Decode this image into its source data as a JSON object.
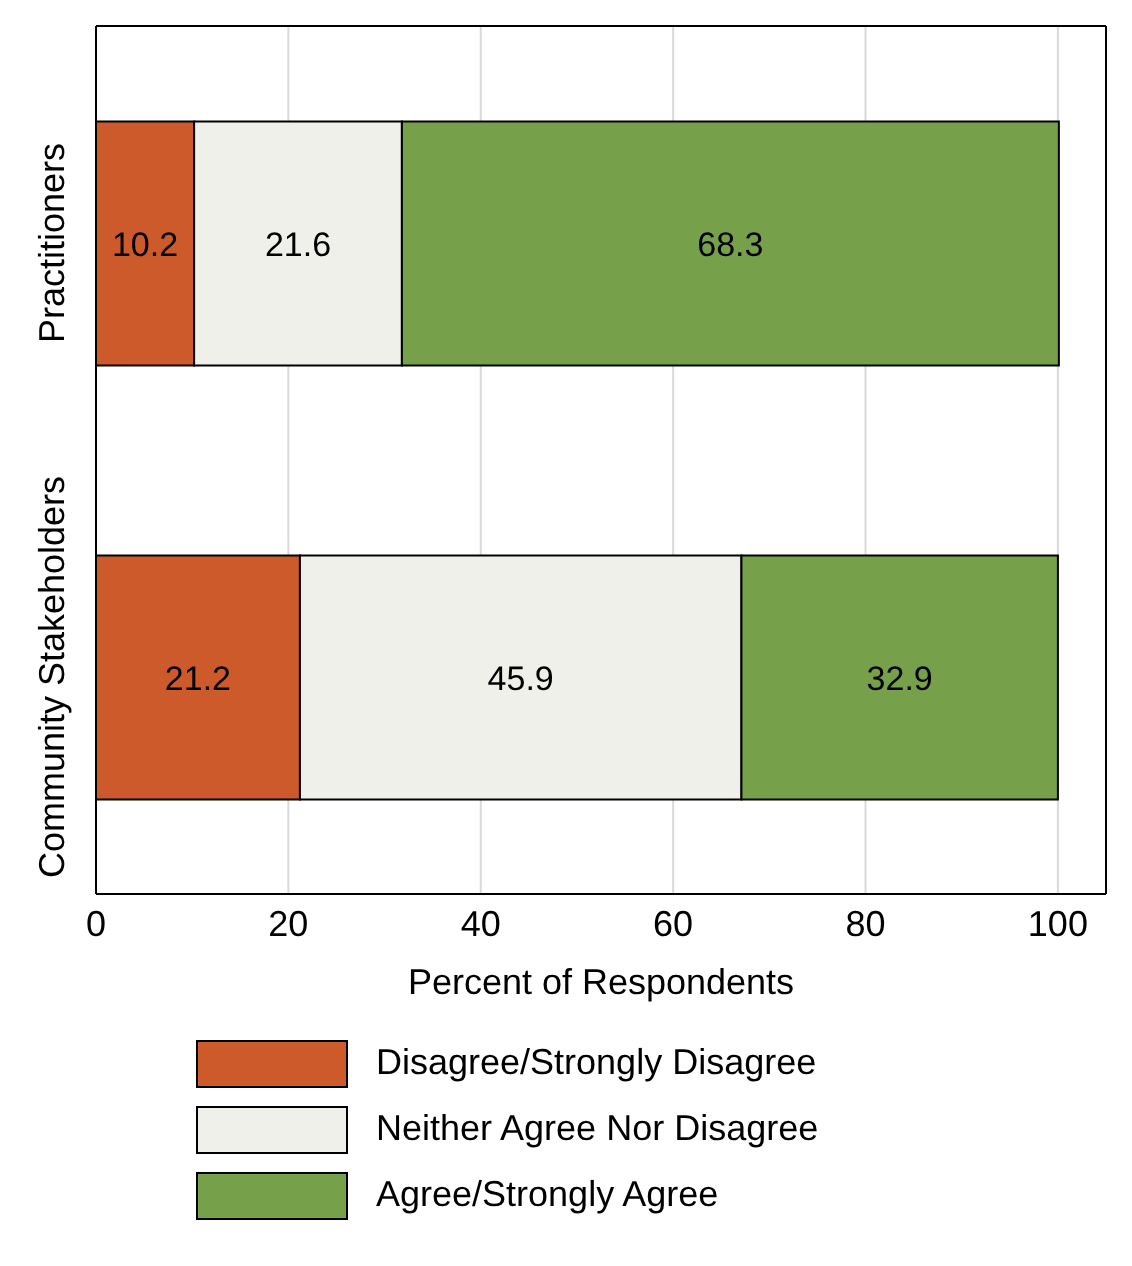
{
  "chart_data": {
    "type": "bar",
    "orientation": "horizontal",
    "stacked": true,
    "categories": [
      "Practitioners",
      "Community Stakeholders"
    ],
    "series": [
      {
        "name": "Disagree/Strongly Disagree",
        "color": "#cc5a2a",
        "values": [
          10.2,
          21.2
        ]
      },
      {
        "name": "Neither Agree Nor Disagree",
        "color": "#f0f0eb",
        "values": [
          21.6,
          45.9
        ]
      },
      {
        "name": "Agree/Strongly Agree",
        "color": "#76a04a",
        "values": [
          68.3,
          32.9
        ]
      }
    ],
    "xlabel": "Percent of Respondents",
    "xlim": [
      0,
      105
    ],
    "xticks": [
      0,
      20,
      40,
      60,
      80,
      100
    ],
    "grid": "x",
    "legend": "bottom",
    "data_labels": true
  }
}
